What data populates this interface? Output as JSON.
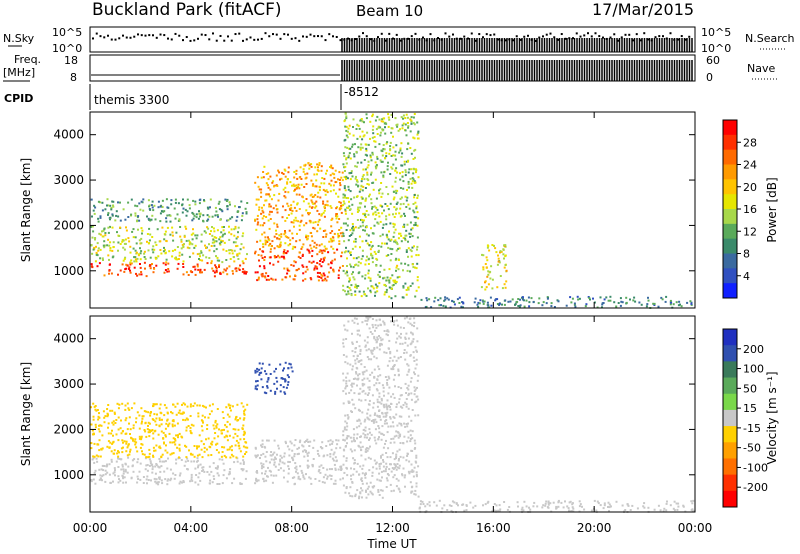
{
  "header": {
    "title": "Buckland Park (fitACF)",
    "beam": "Beam 10",
    "date": "17/Mar/2015"
  },
  "strips": {
    "nsky_label": "N.Sky",
    "nsky_ticks": [
      "10^5",
      "10^0"
    ],
    "nsearch_label": "N.Search",
    "freq_label": "Freq.",
    "freq_unit": "[MHz]",
    "freq_ticks": [
      "18",
      "8"
    ],
    "nave_label": "Nave",
    "nave_ticks": [
      "60",
      "0"
    ],
    "cpid_label": "CPID",
    "cpid_values": [
      "themis 3300",
      "-8512"
    ]
  },
  "axes": {
    "ylabel": "Slant Range [km]",
    "yticks": [
      "4000",
      "3000",
      "2000",
      "1000"
    ],
    "xticks": [
      "00:00",
      "04:00",
      "08:00",
      "12:00",
      "16:00",
      "20:00",
      "00:00"
    ],
    "xlabel": "Time UT"
  },
  "power_colorbar": {
    "label": "Power [dB]",
    "ticks": [
      "28",
      "24",
      "20",
      "16",
      "12",
      "8",
      "4"
    ],
    "colors": [
      "#ff0000",
      "#ff3000",
      "#ff6a00",
      "#ff9a00",
      "#ffc400",
      "#e6e600",
      "#a8d84a",
      "#5aaa5a",
      "#3a8a6a",
      "#3a6aa0",
      "#3050c0",
      "#1020ff"
    ]
  },
  "velocity_colorbar": {
    "label": "Velocity [m s⁻¹]",
    "ticks": [
      "200",
      "100",
      "50",
      "15",
      "-15",
      "-50",
      "-100",
      "-200"
    ],
    "colors": [
      "#2030c0",
      "#3050b0",
      "#3a7a5a",
      "#5aaa5a",
      "#7ad84a",
      "#c8c8c8",
      "#ffd000",
      "#ffa000",
      "#ff7000",
      "#ff3000",
      "#ff0000"
    ]
  },
  "chart_data": [
    {
      "type": "heatmap",
      "title": "Power",
      "xlabel": "Time UT",
      "ylabel": "Slant Range [km]",
      "xlim": [
        "00:00",
        "24:00"
      ],
      "ylim": [
        180,
        4500
      ],
      "colorbar": {
        "label": "Power [dB]",
        "range": [
          0,
          32
        ]
      },
      "regions": [
        {
          "t": [
            0.0,
            6.2
          ],
          "range": [
            900,
            1200
          ],
          "value": 28
        },
        {
          "t": [
            0.0,
            6.2
          ],
          "range": [
            1200,
            2000
          ],
          "value": 16
        },
        {
          "t": [
            0.0,
            6.2
          ],
          "range": [
            2100,
            2600
          ],
          "value": 10
        },
        {
          "t": [
            6.5,
            10.0
          ],
          "range": [
            800,
            1500
          ],
          "value": 28
        },
        {
          "t": [
            6.5,
            10.0
          ],
          "range": [
            1500,
            3400
          ],
          "value": 22
        },
        {
          "t": [
            10.0,
            13.0
          ],
          "range": [
            400,
            4500
          ],
          "value": 14
        },
        {
          "t": [
            15.5,
            16.5
          ],
          "range": [
            600,
            1600
          ],
          "value": 18
        },
        {
          "t": [
            13.0,
            24.0
          ],
          "range": [
            200,
            450
          ],
          "value": 8
        }
      ]
    },
    {
      "type": "heatmap",
      "title": "Velocity",
      "xlabel": "Time UT",
      "ylabel": "Slant Range [km]",
      "xlim": [
        "00:00",
        "24:00"
      ],
      "ylim": [
        180,
        4500
      ],
      "colorbar": {
        "label": "Velocity [m s⁻¹]",
        "range": [
          -250,
          250
        ]
      },
      "regions": [
        {
          "t": [
            0.0,
            6.2
          ],
          "range": [
            800,
            1400
          ],
          "value": 0
        },
        {
          "t": [
            0.0,
            6.2
          ],
          "range": [
            1400,
            2600
          ],
          "value": -40
        },
        {
          "t": [
            6.5,
            8.0
          ],
          "range": [
            2800,
            3500
          ],
          "value": 200
        },
        {
          "t": [
            6.5,
            10.0
          ],
          "range": [
            800,
            1800
          ],
          "value": 0
        },
        {
          "t": [
            10.0,
            13.0
          ],
          "range": [
            500,
            4500
          ],
          "value": -20
        },
        {
          "t": [
            13.0,
            24.0
          ],
          "range": [
            200,
            450
          ],
          "value": 15
        }
      ]
    }
  ]
}
